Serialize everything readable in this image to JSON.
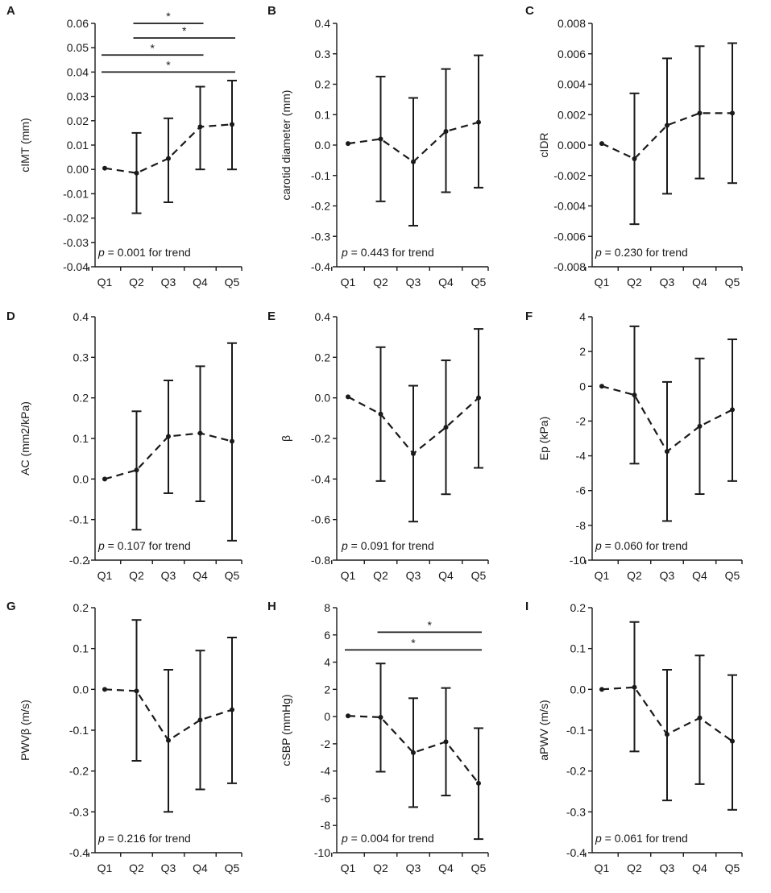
{
  "chart_data": [
    {
      "panel": "A",
      "type": "line",
      "ylabel": "cIMT (mm)",
      "categories": [
        "Q1",
        "Q2",
        "Q3",
        "Q4",
        "Q5"
      ],
      "ylim": [
        -0.04,
        0.06
      ],
      "ytick_step": 0.01,
      "yticks": [
        "-0.04",
        "-0.03",
        "-0.02",
        "-0.01",
        "0.00",
        "0.01",
        "0.02",
        "0.03",
        "0.04",
        "0.05",
        "0.06"
      ],
      "series": [
        {
          "name": "mean",
          "values": [
            0.0005,
            -0.0015,
            0.0045,
            0.0175,
            0.0185
          ],
          "err_lower": [
            0.0005,
            -0.018,
            -0.0135,
            0.0,
            0.0
          ],
          "err_upper": [
            0.0005,
            0.015,
            0.021,
            0.034,
            0.0365
          ]
        }
      ],
      "annotation": {
        "prefix": "p",
        "text": " = 0.001 for trend"
      },
      "significance": [
        {
          "from": 2,
          "to": 4,
          "y": 0.06,
          "label": "*"
        },
        {
          "from": 2,
          "to": 5,
          "y": 0.054,
          "label": "*"
        },
        {
          "from": 1,
          "to": 4,
          "y": 0.047,
          "label": "*"
        },
        {
          "from": 1,
          "to": 5,
          "y": 0.04,
          "label": "*"
        }
      ]
    },
    {
      "panel": "B",
      "type": "line",
      "ylabel": "carotid diameter (mm)",
      "categories": [
        "Q1",
        "Q2",
        "Q3",
        "Q4",
        "Q5"
      ],
      "ylim": [
        -0.4,
        0.4
      ],
      "ytick_step": 0.1,
      "yticks": [
        "-0.4",
        "-0.3",
        "-0.2",
        "-0.1",
        "0.0",
        "0.1",
        "0.2",
        "0.3",
        "0.4"
      ],
      "series": [
        {
          "name": "mean",
          "values": [
            0.005,
            0.02,
            -0.055,
            0.045,
            0.075
          ],
          "err_lower": [
            0.005,
            -0.185,
            -0.265,
            -0.155,
            -0.14
          ],
          "err_upper": [
            0.005,
            0.225,
            0.155,
            0.25,
            0.295
          ]
        }
      ],
      "annotation": {
        "prefix": "p",
        "text": " = 0.443 for trend"
      },
      "significance": []
    },
    {
      "panel": "C",
      "type": "line",
      "ylabel": "cIDR",
      "categories": [
        "Q1",
        "Q2",
        "Q3",
        "Q4",
        "Q5"
      ],
      "ylim": [
        -0.008,
        0.008
      ],
      "ytick_step": 0.002,
      "yticks": [
        "-0.008",
        "-0.006",
        "-0.004",
        "-0.002",
        "0.000",
        "0.002",
        "0.004",
        "0.006",
        "0.008"
      ],
      "series": [
        {
          "name": "mean",
          "values": [
            0.0001,
            -0.0009,
            0.0013,
            0.0021,
            0.0021
          ],
          "err_lower": [
            0.0001,
            -0.0052,
            -0.0032,
            -0.0022,
            -0.0025
          ],
          "err_upper": [
            0.0001,
            0.0034,
            0.0057,
            0.0065,
            0.0067
          ]
        }
      ],
      "annotation": {
        "prefix": "p",
        "text": " = 0.230 for trend"
      },
      "significance": []
    },
    {
      "panel": "D",
      "type": "line",
      "ylabel": "AC (mm2/kPa)",
      "categories": [
        "Q1",
        "Q2",
        "Q3",
        "Q4",
        "Q5"
      ],
      "ylim": [
        -0.2,
        0.4
      ],
      "ytick_step": 0.1,
      "yticks": [
        "-0.2",
        "-0.1",
        "0.0",
        "0.1",
        "0.2",
        "0.3",
        "0.4"
      ],
      "series": [
        {
          "name": "mean",
          "values": [
            0.0,
            0.022,
            0.105,
            0.113,
            0.093
          ],
          "err_lower": [
            0.0,
            -0.125,
            -0.035,
            -0.055,
            -0.152
          ],
          "err_upper": [
            0.0,
            0.167,
            0.243,
            0.278,
            0.335
          ]
        }
      ],
      "annotation": {
        "prefix": "p",
        "text": " = 0.107 for trend"
      },
      "significance": []
    },
    {
      "panel": "E",
      "type": "line",
      "ylabel": "β",
      "categories": [
        "Q1",
        "Q2",
        "Q3",
        "Q4",
        "Q5"
      ],
      "ylim": [
        -0.8,
        0.4
      ],
      "ytick_step": 0.2,
      "yticks": [
        "-0.8",
        "-0.6",
        "-0.4",
        "-0.2",
        "0.0",
        "0.2",
        "0.4"
      ],
      "series": [
        {
          "name": "mean",
          "values": [
            0.005,
            -0.08,
            -0.275,
            -0.145,
            0.0
          ],
          "err_lower": [
            0.005,
            -0.41,
            -0.61,
            -0.475,
            -0.345
          ],
          "err_upper": [
            0.005,
            0.25,
            0.06,
            0.185,
            0.34
          ]
        }
      ],
      "annotation": {
        "prefix": "p",
        "text": " = 0.091 for trend"
      },
      "significance": []
    },
    {
      "panel": "F",
      "type": "line",
      "ylabel": "Ep (kPa)",
      "categories": [
        "Q1",
        "Q2",
        "Q3",
        "Q4",
        "Q5"
      ],
      "ylim": [
        -10,
        4
      ],
      "ytick_step": 2,
      "yticks": [
        "-10",
        "-8",
        "-6",
        "-4",
        "-2",
        "0",
        "2",
        "4"
      ],
      "series": [
        {
          "name": "mean",
          "values": [
            0.0,
            -0.5,
            -3.75,
            -2.3,
            -1.35
          ],
          "err_lower": [
            0.0,
            -4.45,
            -7.75,
            -6.2,
            -5.45
          ],
          "err_upper": [
            0.0,
            3.45,
            0.25,
            1.6,
            2.7
          ]
        }
      ],
      "annotation": {
        "prefix": "p",
        "text": " = 0.060 for trend"
      },
      "significance": []
    },
    {
      "panel": "G",
      "type": "line",
      "ylabel": "PWVβ (m/s)",
      "categories": [
        "Q1",
        "Q2",
        "Q3",
        "Q4",
        "Q5"
      ],
      "ylim": [
        -0.4,
        0.2
      ],
      "ytick_step": 0.1,
      "yticks": [
        "-0.4",
        "-0.3",
        "-0.2",
        "-0.1",
        "0.0",
        "0.1",
        "0.2"
      ],
      "series": [
        {
          "name": "mean",
          "values": [
            0.0,
            -0.004,
            -0.125,
            -0.075,
            -0.05
          ],
          "err_lower": [
            0.0,
            -0.175,
            -0.3,
            -0.245,
            -0.23
          ],
          "err_upper": [
            0.0,
            0.17,
            0.048,
            0.095,
            0.127
          ]
        }
      ],
      "annotation": {
        "prefix": "p",
        "text": " = 0.216 for trend"
      },
      "significance": []
    },
    {
      "panel": "H",
      "type": "line",
      "ylabel": "cSBP (mmHg)",
      "categories": [
        "Q1",
        "Q2",
        "Q3",
        "Q4",
        "Q5"
      ],
      "ylim": [
        -10,
        8
      ],
      "ytick_step": 2,
      "yticks": [
        "-10",
        "-8",
        "-6",
        "-4",
        "-2",
        "0",
        "2",
        "4",
        "6",
        "8"
      ],
      "series": [
        {
          "name": "mean",
          "values": [
            0.05,
            -0.05,
            -2.65,
            -1.85,
            -4.9
          ],
          "err_lower": [
            0.05,
            -4.05,
            -6.65,
            -5.8,
            -9.0
          ],
          "err_upper": [
            0.05,
            3.9,
            1.35,
            2.1,
            -0.85
          ]
        }
      ],
      "annotation": {
        "prefix": "p",
        "text": " = 0.004 for trend"
      },
      "significance": [
        {
          "from": 2,
          "to": 5,
          "y": 6.2,
          "label": "*"
        },
        {
          "from": 1,
          "to": 5,
          "y": 4.9,
          "label": "*"
        }
      ]
    },
    {
      "panel": "I",
      "type": "line",
      "ylabel": "aPWV (m/s)",
      "categories": [
        "Q1",
        "Q2",
        "Q3",
        "Q4",
        "Q5"
      ],
      "ylim": [
        -0.4,
        0.2
      ],
      "ytick_step": 0.1,
      "yticks": [
        "-0.4",
        "-0.3",
        "-0.2",
        "-0.1",
        "0.0",
        "0.1",
        "0.2"
      ],
      "series": [
        {
          "name": "mean",
          "values": [
            0.0,
            0.005,
            -0.11,
            -0.07,
            -0.127
          ],
          "err_lower": [
            0.0,
            -0.152,
            -0.272,
            -0.232,
            -0.295
          ],
          "err_upper": [
            0.0,
            0.165,
            0.048,
            0.083,
            0.035
          ]
        }
      ],
      "annotation": {
        "prefix": "p",
        "text": " = 0.061 for trend"
      },
      "significance": []
    }
  ],
  "colors": {
    "ink": "#1a1a1a",
    "background": "#ffffff"
  }
}
